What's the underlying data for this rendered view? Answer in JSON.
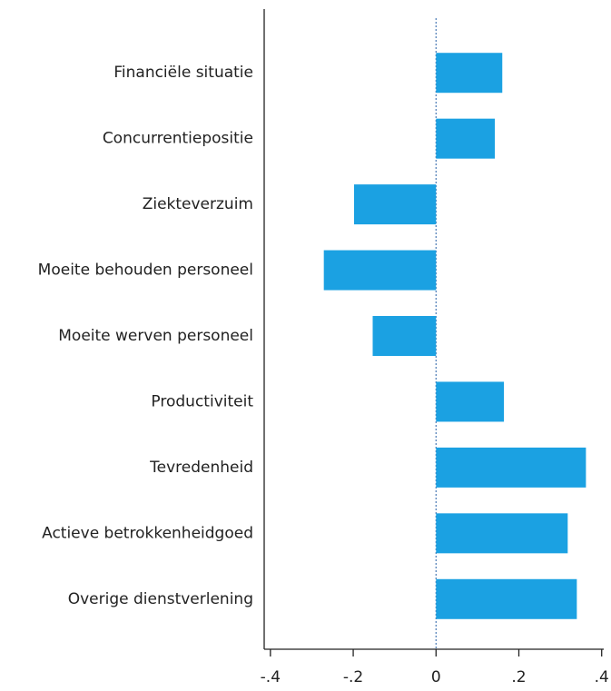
{
  "chart_data": {
    "type": "barh",
    "categories": [
      "Financiële situatie",
      "Concurrentiepositie",
      "Ziekteverzuim",
      "Moeite behouden personeel",
      "Moeite werven personeel",
      "Productiviteit",
      "Tevredenheid",
      "Actieve betrokkenheidgoed",
      "Overige dienstverlening"
    ],
    "values": [
      0.16,
      0.142,
      -0.198,
      -0.271,
      -0.153,
      0.164,
      0.362,
      0.318,
      0.34
    ],
    "color": "#1ba1e2",
    "xlim": [
      -0.415,
      0.405
    ],
    "xticks": [
      {
        "value": -0.4,
        "label": "-.4"
      },
      {
        "value": -0.2,
        "label": "-.2"
      },
      0,
      {
        "value": 0.2,
        "label": ".2"
      },
      {
        "value": 0.4,
        "label": ".4"
      }
    ],
    "zero_line_color": "#4a7ab5"
  }
}
